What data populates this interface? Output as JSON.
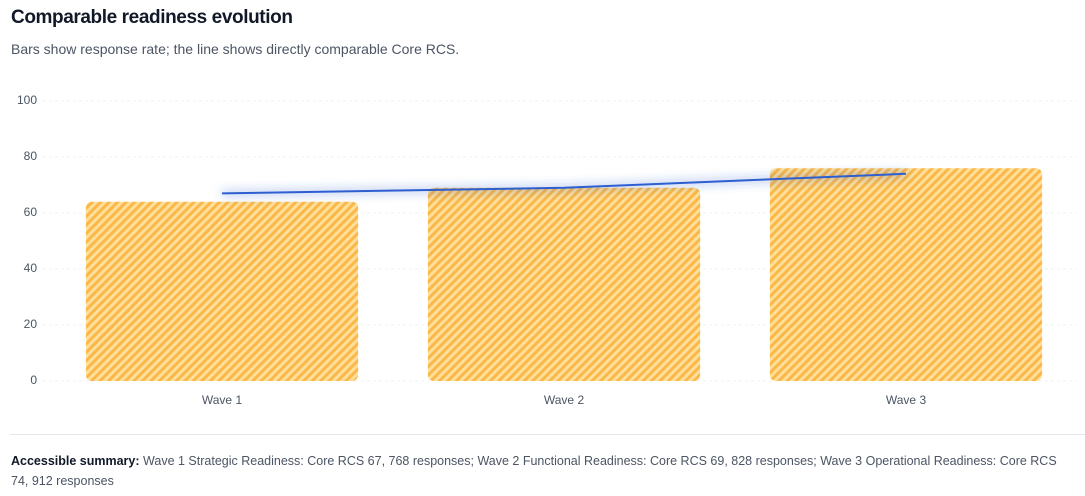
{
  "chart_data": {
    "type": "bar",
    "title": "Comparable readiness evolution",
    "subtitle": "Bars show response rate; the line shows directly comparable Core RCS.",
    "categories": [
      "Wave 1",
      "Wave 2",
      "Wave 3"
    ],
    "series": [
      {
        "type": "bar",
        "color": "#fbb849",
        "values": [
          64,
          69,
          76
        ]
      },
      {
        "type": "line",
        "color": "#2f5fd0",
        "values": [
          67,
          69,
          74
        ]
      }
    ],
    "ylim": [
      0,
      100
    ],
    "yticks": [
      0,
      20,
      40,
      60,
      80,
      100
    ],
    "grid": true
  },
  "summary": {
    "label": "Accessible summary:",
    "text": "Wave 1 Strategic Readiness: Core RCS 67, 768 responses; Wave 2 Functional Readiness: Core RCS 69, 828 responses; Wave 3 Operational Readiness: Core RCS 74, 912 responses"
  }
}
